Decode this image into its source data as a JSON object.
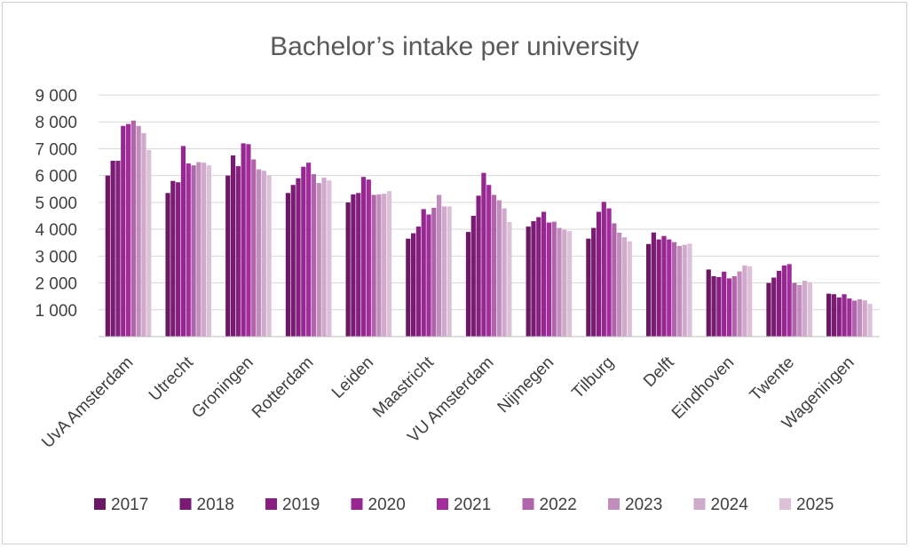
{
  "chart_data": {
    "type": "bar",
    "title": "Bachelor’s intake per university",
    "xlabel": "",
    "ylabel": "",
    "ylim": [
      0,
      9000
    ],
    "yticks": [
      1000,
      2000,
      3000,
      4000,
      5000,
      6000,
      7000,
      8000,
      9000
    ],
    "ytick_labels": [
      "1 000",
      "2 000",
      "3 000",
      "4 000",
      "5 000",
      "6 000",
      "7 000",
      "8 000",
      "9 000"
    ],
    "grid": true,
    "legend_position": "bottom",
    "categories": [
      "UvA Amsterdam",
      "Utrecht",
      "Groningen",
      "Rotterdam",
      "Leiden",
      "Maastricht",
      "VU Amsterdam",
      "Nijmegen",
      "Tilburg",
      "Delft",
      "Eindhoven",
      "Twente",
      "Wageningen"
    ],
    "series": [
      {
        "name": "2017",
        "color": "#6b1763",
        "values": [
          6000,
          5350,
          6000,
          5350,
          5000,
          3650,
          3900,
          4100,
          3650,
          3450,
          2500,
          2000,
          1600
        ]
      },
      {
        "name": "2018",
        "color": "#7a1b73",
        "values": [
          6550,
          5800,
          6750,
          5650,
          5300,
          3850,
          4500,
          4300,
          4050,
          3880,
          2250,
          2200,
          1580
        ]
      },
      {
        "name": "2019",
        "color": "#871f80",
        "values": [
          6550,
          5750,
          6350,
          5900,
          5350,
          4100,
          5250,
          4450,
          4650,
          3620,
          2220,
          2450,
          1460
        ]
      },
      {
        "name": "2020",
        "color": "#962690",
        "values": [
          7850,
          7100,
          7200,
          6330,
          5950,
          4750,
          6100,
          4650,
          5020,
          3750,
          2420,
          2650,
          1580
        ]
      },
      {
        "name": "2021",
        "color": "#a22c9c",
        "values": [
          7920,
          6450,
          7170,
          6480,
          5850,
          4550,
          5650,
          4250,
          4780,
          3620,
          2170,
          2700,
          1420
        ]
      },
      {
        "name": "2022",
        "color": "#b064aa",
        "values": [
          8050,
          6380,
          6600,
          6050,
          5280,
          4800,
          5280,
          4280,
          4220,
          3520,
          2250,
          2000,
          1340
        ]
      },
      {
        "name": "2023",
        "color": "#c18dbc",
        "values": [
          7850,
          6500,
          6230,
          5720,
          5300,
          5280,
          5080,
          4050,
          3870,
          3380,
          2430,
          1920,
          1390
        ]
      },
      {
        "name": "2024",
        "color": "#d0aacb",
        "values": [
          7580,
          6480,
          6180,
          5920,
          5320,
          4850,
          4780,
          3980,
          3700,
          3420,
          2650,
          2080,
          1350
        ]
      },
      {
        "name": "2025",
        "color": "#ddc1d9",
        "values": [
          6950,
          6380,
          6020,
          5820,
          5420,
          4850,
          4270,
          3930,
          3550,
          3460,
          2620,
          2030,
          1220
        ]
      }
    ]
  }
}
